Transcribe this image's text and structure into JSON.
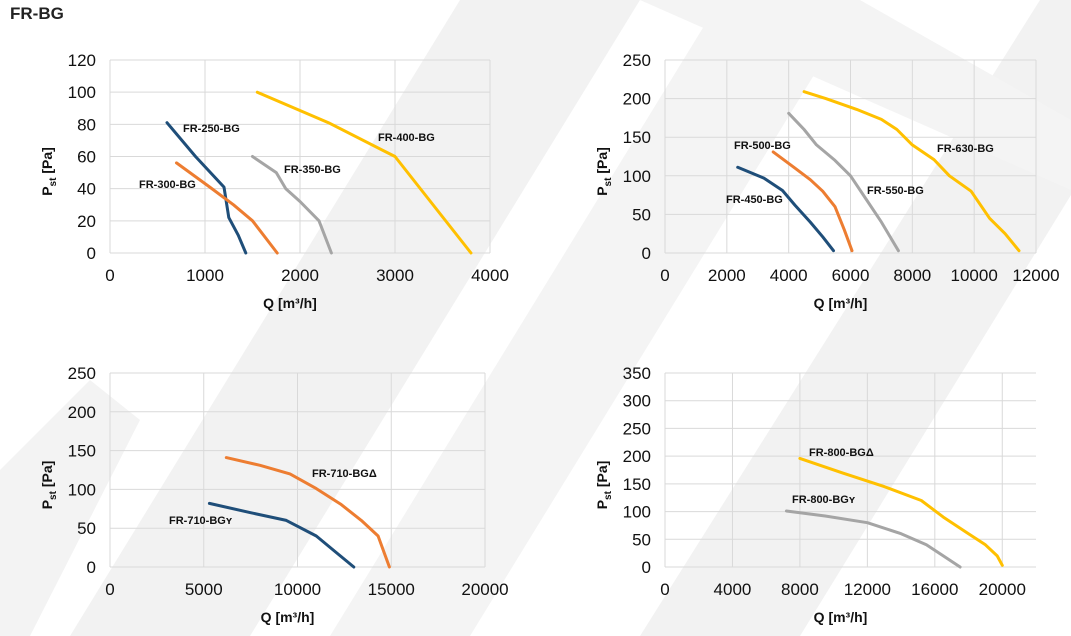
{
  "page_title": "FR-BG",
  "colors": {
    "blue": "#1f4e79",
    "orange": "#ed7d31",
    "gray": "#a5a5a5",
    "yellow": "#ffc000",
    "grid": "#d9d9d9"
  },
  "chart_data": [
    {
      "type": "line",
      "xlabel": "Q [m³/h]",
      "ylabel_main": "P",
      "ylabel_sub": "st",
      "ylabel_unit": " [Pa]",
      "xlim": [
        0,
        4000
      ],
      "ylim": [
        0,
        120
      ],
      "xticks": [
        0,
        1000,
        2000,
        3000,
        4000
      ],
      "yticks": [
        0,
        20,
        40,
        60,
        80,
        100,
        120
      ],
      "grid": true,
      "series": [
        {
          "name": "FR-250-BG",
          "color": "#1f4e79",
          "x": [
            600,
            900,
            1200,
            1250,
            1350,
            1430
          ],
          "y": [
            81,
            60,
            41,
            22,
            11,
            0
          ]
        },
        {
          "name": "FR-300-BG",
          "color": "#ed7d31",
          "x": [
            700,
            1050,
            1300,
            1500,
            1760
          ],
          "y": [
            56,
            41,
            30,
            20,
            0
          ]
        },
        {
          "name": "FR-350-BG",
          "color": "#a5a5a5",
          "x": [
            1500,
            1750,
            1850,
            2000,
            2200,
            2330
          ],
          "y": [
            60,
            50,
            40,
            32,
            20,
            0
          ]
        },
        {
          "name": "FR-400-BG",
          "color": "#ffc000",
          "x": [
            1550,
            2300,
            3000,
            3800
          ],
          "y": [
            100,
            81,
            60,
            0
          ]
        }
      ]
    },
    {
      "type": "line",
      "xlabel": "Q [m³/h]",
      "ylabel_main": "P",
      "ylabel_sub": "st",
      "ylabel_unit": " [Pa]",
      "xlim": [
        0,
        12000
      ],
      "ylim": [
        0,
        250
      ],
      "xticks": [
        0,
        2000,
        4000,
        6000,
        8000,
        10000,
        12000
      ],
      "yticks": [
        0,
        50,
        100,
        150,
        200,
        250
      ],
      "grid": true,
      "series": [
        {
          "name": "FR-450-BG",
          "color": "#1f4e79",
          "x": [
            2350,
            3200,
            3800,
            4200,
            4700,
            5100,
            5450
          ],
          "y": [
            111,
            97,
            81,
            62,
            40,
            21,
            3
          ]
        },
        {
          "name": "FR-500-BG",
          "color": "#ed7d31",
          "x": [
            3500,
            4200,
            4700,
            5100,
            5500,
            5800,
            6050
          ],
          "y": [
            131,
            110,
            95,
            80,
            60,
            30,
            3
          ]
        },
        {
          "name": "FR-550-BG",
          "color": "#a5a5a5",
          "x": [
            4000,
            4500,
            4900,
            5500,
            6000,
            6500,
            7000,
            7550
          ],
          "y": [
            181,
            160,
            140,
            120,
            100,
            70,
            40,
            3
          ]
        },
        {
          "name": "FR-630-BG",
          "color": "#ffc000",
          "x": [
            4500,
            5200,
            6200,
            7000,
            7500,
            8000,
            8700,
            9200,
            9900,
            10500,
            11000,
            11450
          ],
          "y": [
            209,
            200,
            186,
            173,
            160,
            140,
            121,
            100,
            80,
            45,
            25,
            3
          ]
        }
      ]
    },
    {
      "type": "line",
      "xlabel": "Q [m³/h]",
      "ylabel_main": "P",
      "ylabel_sub": "st",
      "ylabel_unit": " [Pa]",
      "xlim": [
        0,
        20000
      ],
      "ylim": [
        0,
        250
      ],
      "xticks": [
        0,
        5000,
        10000,
        15000,
        20000
      ],
      "yticks": [
        0,
        50,
        100,
        150,
        200,
        250
      ],
      "grid": true,
      "series": [
        {
          "name": "FR-710-BGʏ",
          "color": "#1f4e79",
          "x": [
            5300,
            7500,
            9400,
            11000,
            12000,
            13000
          ],
          "y": [
            82,
            70,
            60,
            40,
            20,
            0
          ]
        },
        {
          "name": "FR-710-BGΔ",
          "color": "#ed7d31",
          "x": [
            6200,
            8000,
            9600,
            11000,
            12300,
            13400,
            14300,
            14900
          ],
          "y": [
            141,
            131,
            120,
            101,
            81,
            60,
            40,
            0
          ]
        }
      ]
    },
    {
      "type": "line",
      "xlabel": "Q [m³/h]",
      "ylabel_main": "P",
      "ylabel_sub": "st",
      "ylabel_unit": " [Pa]",
      "xlim": [
        0,
        22000
      ],
      "ylim": [
        0,
        350
      ],
      "xticks": [
        0,
        4000,
        8000,
        12000,
        16000,
        20000
      ],
      "yticks": [
        0,
        50,
        100,
        150,
        200,
        250,
        300,
        350
      ],
      "grid": true,
      "series": [
        {
          "name": "FR-800-BGʏ",
          "color": "#a5a5a5",
          "x": [
            7200,
            9500,
            12000,
            14000,
            15500,
            16500,
            17500
          ],
          "y": [
            101,
            92,
            80,
            60,
            40,
            20,
            0
          ]
        },
        {
          "name": "FR-800-BGΔ",
          "color": "#ffc000",
          "x": [
            8000,
            10500,
            13000,
            15200,
            16500,
            18000,
            19000,
            19700,
            20000
          ],
          "y": [
            196,
            170,
            145,
            120,
            90,
            60,
            40,
            20,
            3
          ]
        }
      ]
    }
  ]
}
